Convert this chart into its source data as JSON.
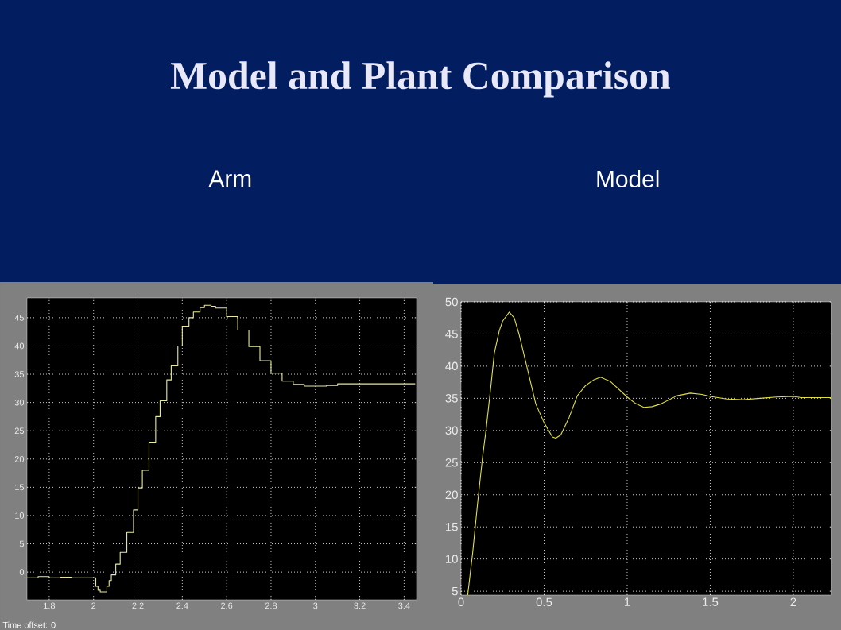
{
  "chart_data": [
    {
      "type": "step",
      "title": "Model and Plant Comparison",
      "subtitle": "Arm",
      "annotations": [
        "Time offset: 0"
      ],
      "xlim": [
        1.7,
        3.456
      ],
      "ylim": [
        -4.9,
        48.5
      ],
      "xticks": [
        1.8,
        2,
        2.2,
        2.4,
        2.6,
        2.8,
        3,
        3.2,
        3.4
      ],
      "yticks": [
        0,
        5,
        10,
        15,
        20,
        25,
        30,
        35,
        40,
        45
      ],
      "grid": true,
      "marker": "none",
      "line_style": "solid",
      "series": [
        {
          "color": "#e8e8a0",
          "x": [
            1.7,
            1.75,
            1.8,
            1.85,
            1.9,
            2.0,
            2.01,
            2.02,
            2.03,
            2.05,
            2.06,
            2.07,
            2.08,
            2.1,
            2.12,
            2.15,
            2.18,
            2.2,
            2.22,
            2.25,
            2.28,
            2.3,
            2.33,
            2.35,
            2.38,
            2.4,
            2.43,
            2.45,
            2.48,
            2.5,
            2.53,
            2.55,
            2.6,
            2.65,
            2.7,
            2.75,
            2.8,
            2.85,
            2.9,
            2.95,
            3.0,
            3.05,
            3.1,
            3.2,
            3.3,
            3.45
          ],
          "values": [
            -1,
            -0.8,
            -1,
            -0.9,
            -1,
            -1,
            -2.5,
            -3.2,
            -3.5,
            -3.5,
            -2.5,
            -1.5,
            -0.5,
            1.4,
            3.5,
            7,
            11,
            14.9,
            18,
            23,
            27.5,
            30.3,
            34,
            36.5,
            40,
            43.5,
            45,
            46,
            46.8,
            47.2,
            47,
            46.7,
            45.2,
            42.8,
            39.9,
            37.4,
            35.2,
            33.8,
            33.2,
            32.9,
            32.9,
            33,
            33.3,
            33.3,
            33.3,
            33.3
          ]
        }
      ]
    },
    {
      "type": "line",
      "subtitle": "Model",
      "xlim": [
        0,
        2.23
      ],
      "ylim": [
        4.4,
        50
      ],
      "xticks": [
        0,
        0.5,
        1,
        1.5,
        2
      ],
      "yticks": [
        5,
        10,
        15,
        20,
        25,
        30,
        35,
        40,
        45,
        50
      ],
      "grid": true,
      "marker": "none",
      "line_style": "solid",
      "series": [
        {
          "color": "#e0e040",
          "x": [
            0.04,
            0.07,
            0.1,
            0.13,
            0.15,
            0.18,
            0.2,
            0.23,
            0.25,
            0.29,
            0.32,
            0.35,
            0.4,
            0.45,
            0.5,
            0.55,
            0.57,
            0.6,
            0.65,
            0.7,
            0.75,
            0.8,
            0.84,
            0.9,
            0.95,
            1.0,
            1.05,
            1.1,
            1.15,
            1.2,
            1.3,
            1.38,
            1.45,
            1.5,
            1.6,
            1.7,
            1.8,
            1.9,
            2.0,
            2.05,
            2.15,
            2.23
          ],
          "values": [
            4.4,
            11,
            18.8,
            26,
            30,
            37,
            42,
            45.5,
            47,
            48.4,
            47.5,
            44.9,
            39.5,
            34.1,
            31.2,
            29,
            28.8,
            29.3,
            32,
            35.4,
            37,
            37.9,
            38.3,
            37.6,
            36.4,
            35.2,
            34.2,
            33.6,
            33.7,
            34.1,
            35.4,
            35.8,
            35.6,
            35.3,
            34.9,
            34.8,
            35,
            35.2,
            35.3,
            35.1,
            35.1,
            35.1
          ]
        }
      ]
    }
  ]
}
